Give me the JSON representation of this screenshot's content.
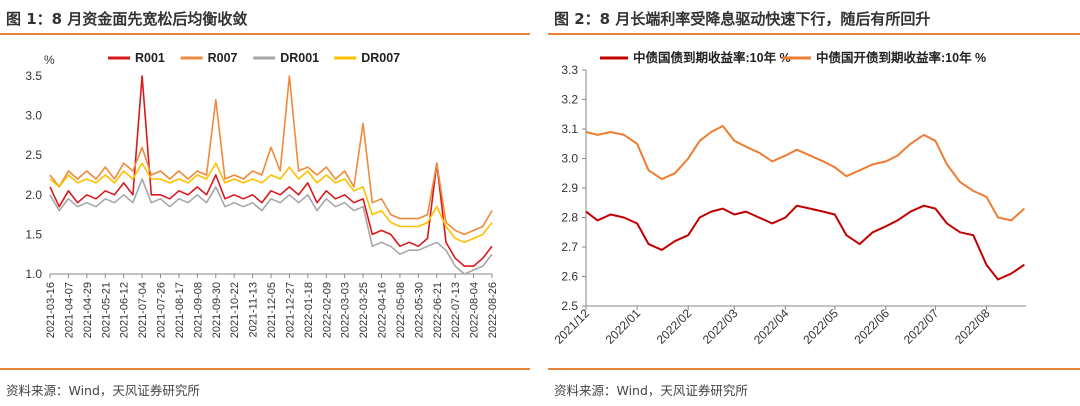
{
  "charts": [
    {
      "title": "图 1：8 月资金面先宽松后均衡收敛",
      "source": "资料来源：Wind，天风证券研究所",
      "unit_label": "%"
    },
    {
      "title": "图 2：8 月长端利率受降息驱动快速下行，随后有所回升",
      "source": "资料来源：Wind，天风证券研究所"
    }
  ],
  "chart_data": [
    {
      "type": "line",
      "title": "图 1：8 月资金面先宽松后均衡收敛",
      "ylabel": "%",
      "ylim": [
        1.0,
        3.5
      ],
      "yticks": [
        1.0,
        1.5,
        2.0,
        2.5,
        3.0,
        3.5
      ],
      "legend_position": "top",
      "x_tick_labels": [
        "2021-03-16",
        "2021-04-07",
        "2021-04-29",
        "2021-05-21",
        "2021-06-12",
        "2021-07-04",
        "2021-07-26",
        "2021-08-17",
        "2021-09-08",
        "2021-09-30",
        "2021-10-22",
        "2021-11-13",
        "2021-12-05",
        "2021-12-27",
        "2022-01-18",
        "2022-02-09",
        "2022-03-03",
        "2022-03-25",
        "2022-04-16",
        "2022-05-08",
        "2022-05-30",
        "2022-06-21",
        "2022-07-13",
        "2022-08-04",
        "2022-08-26"
      ],
      "x": [
        "2021-03-16",
        "2021-03-27",
        "2021-04-07",
        "2021-04-18",
        "2021-04-29",
        "2021-05-10",
        "2021-05-21",
        "2021-06-01",
        "2021-06-12",
        "2021-06-23",
        "2021-07-04",
        "2021-07-15",
        "2021-07-26",
        "2021-08-06",
        "2021-08-17",
        "2021-08-28",
        "2021-09-08",
        "2021-09-19",
        "2021-09-30",
        "2021-10-11",
        "2021-10-22",
        "2021-11-02",
        "2021-11-13",
        "2021-11-24",
        "2021-12-05",
        "2021-12-16",
        "2021-12-27",
        "2022-01-07",
        "2022-01-18",
        "2022-01-29",
        "2022-02-09",
        "2022-02-20",
        "2022-03-03",
        "2022-03-14",
        "2022-03-25",
        "2022-04-05",
        "2022-04-16",
        "2022-04-27",
        "2022-05-08",
        "2022-05-19",
        "2022-05-30",
        "2022-06-10",
        "2022-06-21",
        "2022-07-02",
        "2022-07-13",
        "2022-07-24",
        "2022-08-04",
        "2022-08-15",
        "2022-08-26"
      ],
      "series": [
        {
          "name": "R001",
          "color": "#d7191c",
          "values": [
            2.1,
            1.85,
            2.05,
            1.9,
            2.0,
            1.95,
            2.05,
            2.0,
            2.15,
            2.0,
            3.5,
            2.0,
            2.0,
            1.95,
            2.05,
            2.0,
            2.1,
            2.0,
            2.25,
            1.95,
            2.0,
            1.95,
            2.0,
            1.9,
            2.05,
            2.0,
            2.1,
            2.0,
            2.15,
            1.9,
            2.05,
            1.95,
            2.0,
            1.9,
            1.95,
            1.5,
            1.55,
            1.5,
            1.35,
            1.4,
            1.35,
            1.45,
            2.4,
            1.4,
            1.2,
            1.1,
            1.1,
            1.2,
            1.35
          ]
        },
        {
          "name": "R007",
          "color": "#f08a3c",
          "values": [
            2.25,
            2.1,
            2.3,
            2.2,
            2.3,
            2.2,
            2.35,
            2.2,
            2.4,
            2.3,
            2.6,
            2.25,
            2.3,
            2.2,
            2.3,
            2.2,
            2.3,
            2.25,
            3.2,
            2.2,
            2.25,
            2.2,
            2.3,
            2.25,
            2.6,
            2.3,
            3.5,
            2.3,
            2.35,
            2.25,
            2.35,
            2.2,
            2.3,
            2.1,
            2.9,
            1.9,
            1.95,
            1.75,
            1.7,
            1.7,
            1.7,
            1.75,
            2.4,
            1.65,
            1.55,
            1.5,
            1.55,
            1.6,
            1.8
          ]
        },
        {
          "name": "DR001",
          "color": "#a6a6a6",
          "values": [
            2.0,
            1.8,
            1.95,
            1.85,
            1.9,
            1.85,
            1.95,
            1.9,
            2.0,
            1.9,
            2.2,
            1.9,
            1.95,
            1.85,
            1.95,
            1.9,
            2.0,
            1.9,
            2.1,
            1.85,
            1.9,
            1.85,
            1.9,
            1.8,
            1.95,
            1.9,
            2.0,
            1.9,
            2.0,
            1.8,
            1.95,
            1.85,
            1.9,
            1.8,
            1.85,
            1.35,
            1.4,
            1.35,
            1.25,
            1.3,
            1.3,
            1.35,
            1.4,
            1.3,
            1.1,
            1.0,
            1.05,
            1.1,
            1.25
          ]
        },
        {
          "name": "DR007",
          "color": "#ffc000",
          "values": [
            2.2,
            2.1,
            2.25,
            2.15,
            2.2,
            2.15,
            2.25,
            2.15,
            2.3,
            2.2,
            2.4,
            2.2,
            2.2,
            2.15,
            2.2,
            2.15,
            2.25,
            2.2,
            2.4,
            2.15,
            2.2,
            2.15,
            2.2,
            2.15,
            2.25,
            2.2,
            2.35,
            2.2,
            2.3,
            2.15,
            2.25,
            2.15,
            2.2,
            2.05,
            2.1,
            1.75,
            1.8,
            1.65,
            1.6,
            1.6,
            1.6,
            1.65,
            1.85,
            1.6,
            1.45,
            1.4,
            1.45,
            1.5,
            1.65
          ]
        }
      ]
    },
    {
      "type": "line",
      "title": "图 2：8 月长端利率受降息驱动快速下行，随后有所回升",
      "ylim": [
        2.5,
        3.3
      ],
      "yticks": [
        2.5,
        2.6,
        2.7,
        2.8,
        2.9,
        3.0,
        3.1,
        3.2,
        3.3
      ],
      "legend_position": "top",
      "x_tick_labels": [
        "2021/12",
        "2022/01",
        "2022/02",
        "2022/03",
        "2022/04",
        "2022/05",
        "2022/06",
        "2022/07",
        "2022/08"
      ],
      "x": [
        "2021-12-01",
        "2021-12-08",
        "2021-12-16",
        "2021-12-24",
        "2022-01-01",
        "2022-01-08",
        "2022-01-16",
        "2022-01-24",
        "2022-02-01",
        "2022-02-08",
        "2022-02-15",
        "2022-02-22",
        "2022-03-01",
        "2022-03-08",
        "2022-03-16",
        "2022-03-24",
        "2022-04-01",
        "2022-04-08",
        "2022-04-16",
        "2022-04-24",
        "2022-05-01",
        "2022-05-08",
        "2022-05-16",
        "2022-05-24",
        "2022-06-01",
        "2022-06-08",
        "2022-06-16",
        "2022-06-24",
        "2022-07-01",
        "2022-07-08",
        "2022-07-16",
        "2022-07-24",
        "2022-08-01",
        "2022-08-08",
        "2022-08-16",
        "2022-08-24"
      ],
      "series": [
        {
          "name": "中债国债到期收益率:10年 %",
          "color": "#c00000",
          "values": [
            2.82,
            2.79,
            2.81,
            2.8,
            2.78,
            2.71,
            2.69,
            2.72,
            2.74,
            2.8,
            2.82,
            2.83,
            2.81,
            2.82,
            2.8,
            2.78,
            2.8,
            2.84,
            2.83,
            2.82,
            2.81,
            2.74,
            2.71,
            2.75,
            2.77,
            2.79,
            2.82,
            2.84,
            2.83,
            2.78,
            2.75,
            2.74,
            2.64,
            2.59,
            2.61,
            2.64
          ]
        },
        {
          "name": "中债国开债到期收益率:10年 %",
          "color": "#ed7d31",
          "values": [
            3.09,
            3.08,
            3.09,
            3.08,
            3.05,
            2.96,
            2.93,
            2.95,
            3.0,
            3.06,
            3.09,
            3.11,
            3.06,
            3.04,
            3.02,
            2.99,
            3.01,
            3.03,
            3.01,
            2.99,
            2.97,
            2.94,
            2.96,
            2.98,
            2.99,
            3.01,
            3.05,
            3.08,
            3.06,
            2.98,
            2.92,
            2.89,
            2.87,
            2.8,
            2.79,
            2.83
          ]
        }
      ]
    }
  ]
}
